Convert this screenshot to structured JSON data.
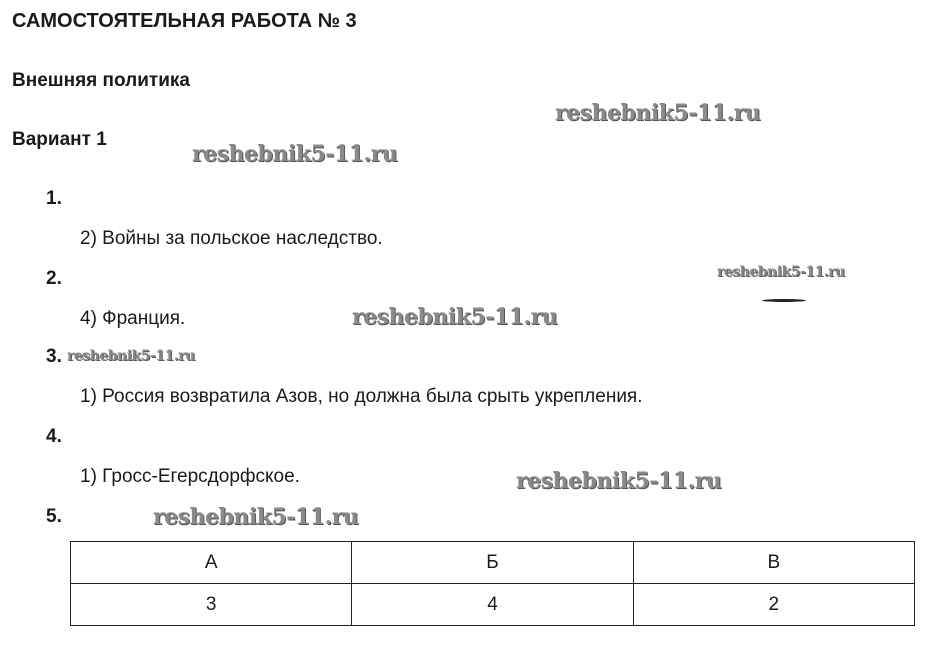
{
  "title": "САМОСТОЯТЕЛЬНАЯ РАБОТА № 3",
  "topic": "Внешняя политика",
  "variant": "Вариант 1",
  "watermark": "reshebnik5-11.ru",
  "questions": [
    {
      "number": "1.",
      "answer": "2) Войны за польское наследство."
    },
    {
      "number": "2.",
      "answer": "4) Франция."
    },
    {
      "number": "3.",
      "answer": "1) Россия возвратила Азов, но должна была срыть укрепления."
    },
    {
      "number": "4.",
      "answer": "1) Гросс-Егерсдорфское."
    },
    {
      "number": "5.",
      "answer": ""
    }
  ],
  "table": {
    "headers": [
      "А",
      "Б",
      "В"
    ],
    "values": [
      "3",
      "4",
      "2"
    ]
  }
}
